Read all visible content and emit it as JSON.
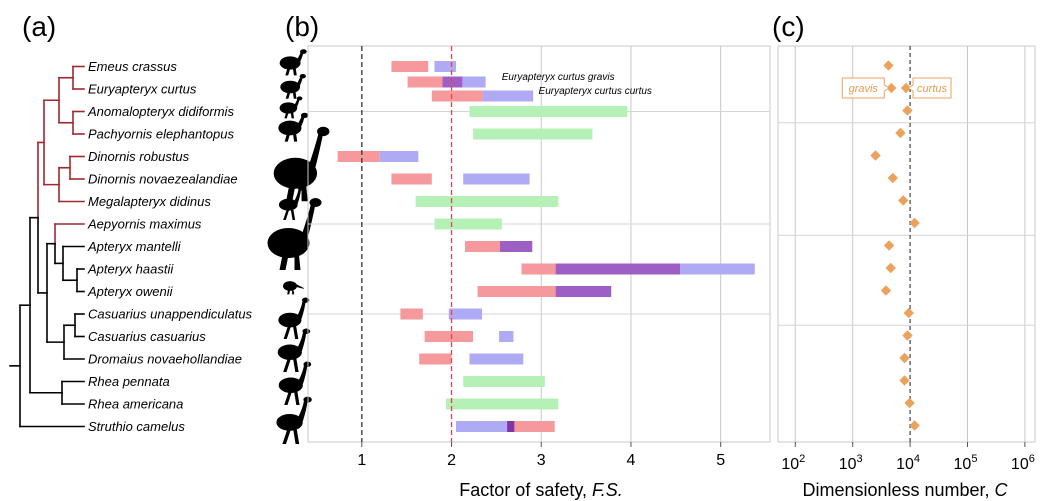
{
  "panel_labels": {
    "a": "(a)",
    "b": "(b)",
    "c": "(c)"
  },
  "chart_data": [
    {
      "panel": "a",
      "type": "tree",
      "taxa": [
        "Emeus crassus",
        "Euryapteryx curtus",
        "Anomalopteryx didiformis",
        "Pachyornis elephantopus",
        "Dinornis robustus",
        "Dinornis novaezealandiae",
        "Megalapteryx didinus",
        "Aepyornis maximus",
        "Apteryx mantelli",
        "Apteryx haastii",
        "Apteryx owenii",
        "Casuarius unappendiculatus",
        "Casuarius casuarius",
        "Dromaius novaehollandiae",
        "Rhea pennata",
        "Rhea americana",
        "Struthio camelus"
      ],
      "colors": {
        "extinct": "#a0282f",
        "extant": "#000000"
      }
    },
    {
      "panel": "b",
      "type": "range-bar",
      "xlabel_main": "Factor of safety, ",
      "xlabel_var": "F.S.",
      "xlim": [
        0.4,
        5.55
      ],
      "xticks": [
        1,
        2,
        3,
        4,
        5
      ],
      "reference_lines": [
        {
          "x": 1,
          "color": "#333333",
          "style": "dashed"
        },
        {
          "x": 2,
          "color": "#e8424a",
          "style": "dashed"
        }
      ],
      "colors": {
        "red": "#f6999c",
        "blue": "#aeaaf4",
        "green": "#b5f0b6",
        "purple": "#9e5fc4",
        "overlap_dark": "#7f35a3"
      },
      "rows": [
        {
          "species": "Emeus crassus",
          "bars": [
            {
              "c": "red",
              "x0": 1.33,
              "x1": 1.74
            },
            {
              "c": "blue",
              "x0": 1.81,
              "x1": 2.05
            }
          ]
        },
        {
          "species": "Euryapteryx curtus",
          "bars": [
            {
              "c": "red",
              "x0": 1.51,
              "x1": 2.35,
              "dy": -7
            },
            {
              "c": "blue",
              "x0": 1.9,
              "x1": 2.38,
              "dy": -7
            },
            {
              "c": "purple",
              "x0": 1.9,
              "x1": 2.12,
              "dy": -7
            },
            {
              "c": "red",
              "x0": 1.78,
              "x1": 2.35,
              "dy": 7
            },
            {
              "c": "blue",
              "x0": 2.35,
              "x1": 2.91,
              "dy": 7
            }
          ]
        },
        {
          "species": "Anomalopteryx didiformis",
          "bars": [
            {
              "c": "green",
              "x0": 2.2,
              "x1": 3.96
            }
          ]
        },
        {
          "species": "Pachyornis elephantopus",
          "bars": [
            {
              "c": "green",
              "x0": 2.24,
              "x1": 3.57
            }
          ]
        },
        {
          "species": "Dinornis robustus",
          "bars": [
            {
              "c": "red",
              "x0": 0.73,
              "x1": 1.2
            },
            {
              "c": "blue",
              "x0": 1.2,
              "x1": 1.63
            }
          ]
        },
        {
          "species": "Dinornis novaezealandiae",
          "bars": [
            {
              "c": "red",
              "x0": 1.33,
              "x1": 1.78
            },
            {
              "c": "blue",
              "x0": 2.13,
              "x1": 2.87
            }
          ]
        },
        {
          "species": "Megalapteryx didinus",
          "bars": [
            {
              "c": "green",
              "x0": 1.6,
              "x1": 3.19
            }
          ]
        },
        {
          "species": "Aepyornis maximus",
          "bars": [
            {
              "c": "green",
              "x0": 1.81,
              "x1": 2.56
            }
          ]
        },
        {
          "species": "Apteryx mantelli",
          "bars": [
            {
              "c": "red",
              "x0": 2.15,
              "x1": 2.54
            },
            {
              "c": "purple",
              "x0": 2.54,
              "x1": 2.9
            }
          ]
        },
        {
          "species": "Apteryx haastii",
          "bars": [
            {
              "c": "red",
              "x0": 2.78,
              "x1": 3.16
            },
            {
              "c": "purple",
              "x0": 3.16,
              "x1": 4.55
            },
            {
              "c": "blue",
              "x0": 4.55,
              "x1": 5.38
            }
          ]
        },
        {
          "species": "Apteryx owenii",
          "bars": [
            {
              "c": "red",
              "x0": 2.29,
              "x1": 3.16
            },
            {
              "c": "purple",
              "x0": 3.16,
              "x1": 3.78
            }
          ]
        },
        {
          "species": "Casuarius unappendiculatus",
          "bars": [
            {
              "c": "red",
              "x0": 1.43,
              "x1": 1.68
            },
            {
              "c": "blue",
              "x0": 1.97,
              "x1": 2.34
            }
          ]
        },
        {
          "species": "Casuarius casuarius",
          "bars": [
            {
              "c": "red",
              "x0": 1.7,
              "x1": 2.24
            },
            {
              "c": "blue",
              "x0": 2.53,
              "x1": 2.69
            }
          ]
        },
        {
          "species": "Dromaius novaehollandiae",
          "bars": [
            {
              "c": "red",
              "x0": 1.64,
              "x1": 2.0
            },
            {
              "c": "blue",
              "x0": 2.2,
              "x1": 2.8
            }
          ]
        },
        {
          "species": "Rhea pennata",
          "bars": [
            {
              "c": "green",
              "x0": 2.13,
              "x1": 3.04
            }
          ]
        },
        {
          "species": "Rhea americana",
          "bars": [
            {
              "c": "green",
              "x0": 1.94,
              "x1": 3.19
            }
          ]
        },
        {
          "species": "Struthio camelus",
          "bars": [
            {
              "c": "blue",
              "x0": 2.05,
              "x1": 2.7
            },
            {
              "c": "red",
              "x0": 2.7,
              "x1": 3.15
            },
            {
              "c": "overlap_dark",
              "x0": 2.62,
              "x1": 2.7
            }
          ]
        }
      ],
      "annotations": [
        {
          "text": "Euryapteryx curtus gravis",
          "x": 2.56,
          "row": 1,
          "dy": -9
        },
        {
          "text": "Euryapteryx curtus curtus",
          "x": 2.97,
          "row": 1,
          "dy": 5
        }
      ]
    },
    {
      "panel": "c",
      "type": "scatter",
      "xlabel_main": "Dimensionless number, ",
      "xlabel_var": "C",
      "xscale": "log",
      "xlim": [
        50,
        1500000
      ],
      "xticks": [
        100,
        1000,
        10000,
        100000,
        1000000
      ],
      "xtick_labels": [
        [
          "10",
          "2"
        ],
        [
          "10",
          "3"
        ],
        [
          "10",
          "4"
        ],
        [
          "10",
          "5"
        ],
        [
          "10",
          "6"
        ]
      ],
      "reference_line": 10000,
      "marker_color": "#eba25c",
      "points": [
        {
          "species": "Emeus crassus",
          "x": 4200,
          "row": 0
        },
        {
          "species": "Euryapteryx curtus gravis",
          "x": 4700,
          "row": 1
        },
        {
          "species": "Euryapteryx curtus curtus",
          "x": 8500,
          "row": 1
        },
        {
          "species": "Anomalopteryx didiformis",
          "x": 9000,
          "row": 2
        },
        {
          "species": "Pachyornis elephantopus",
          "x": 6800,
          "row": 3
        },
        {
          "species": "Dinornis robustus",
          "x": 2500,
          "row": 4
        },
        {
          "species": "Dinornis novaezealandiae",
          "x": 5000,
          "row": 5
        },
        {
          "species": "Megalapteryx didinus",
          "x": 7600,
          "row": 6
        },
        {
          "species": "Aepyornis maximus",
          "x": 12000,
          "row": 7
        },
        {
          "species": "Apteryx mantelli",
          "x": 4300,
          "row": 8
        },
        {
          "species": "Apteryx haastii",
          "x": 4600,
          "row": 9
        },
        {
          "species": "Apteryx owenii",
          "x": 3800,
          "row": 10
        },
        {
          "species": "Casuarius unappendiculatus",
          "x": 9500,
          "row": 11
        },
        {
          "species": "Casuarius casuarius",
          "x": 9000,
          "row": 12
        },
        {
          "species": "Dromaius novaehollandiae",
          "x": 8000,
          "row": 13
        },
        {
          "species": "Rhea pennata",
          "x": 8000,
          "row": 14
        },
        {
          "species": "Rhea americana",
          "x": 9800,
          "row": 15
        },
        {
          "species": "Struthio camelus",
          "x": 12000,
          "row": 16
        }
      ],
      "callouts": [
        {
          "text": "gravis",
          "row": 1
        },
        {
          "text": "curtus",
          "row": 1
        }
      ]
    }
  ]
}
